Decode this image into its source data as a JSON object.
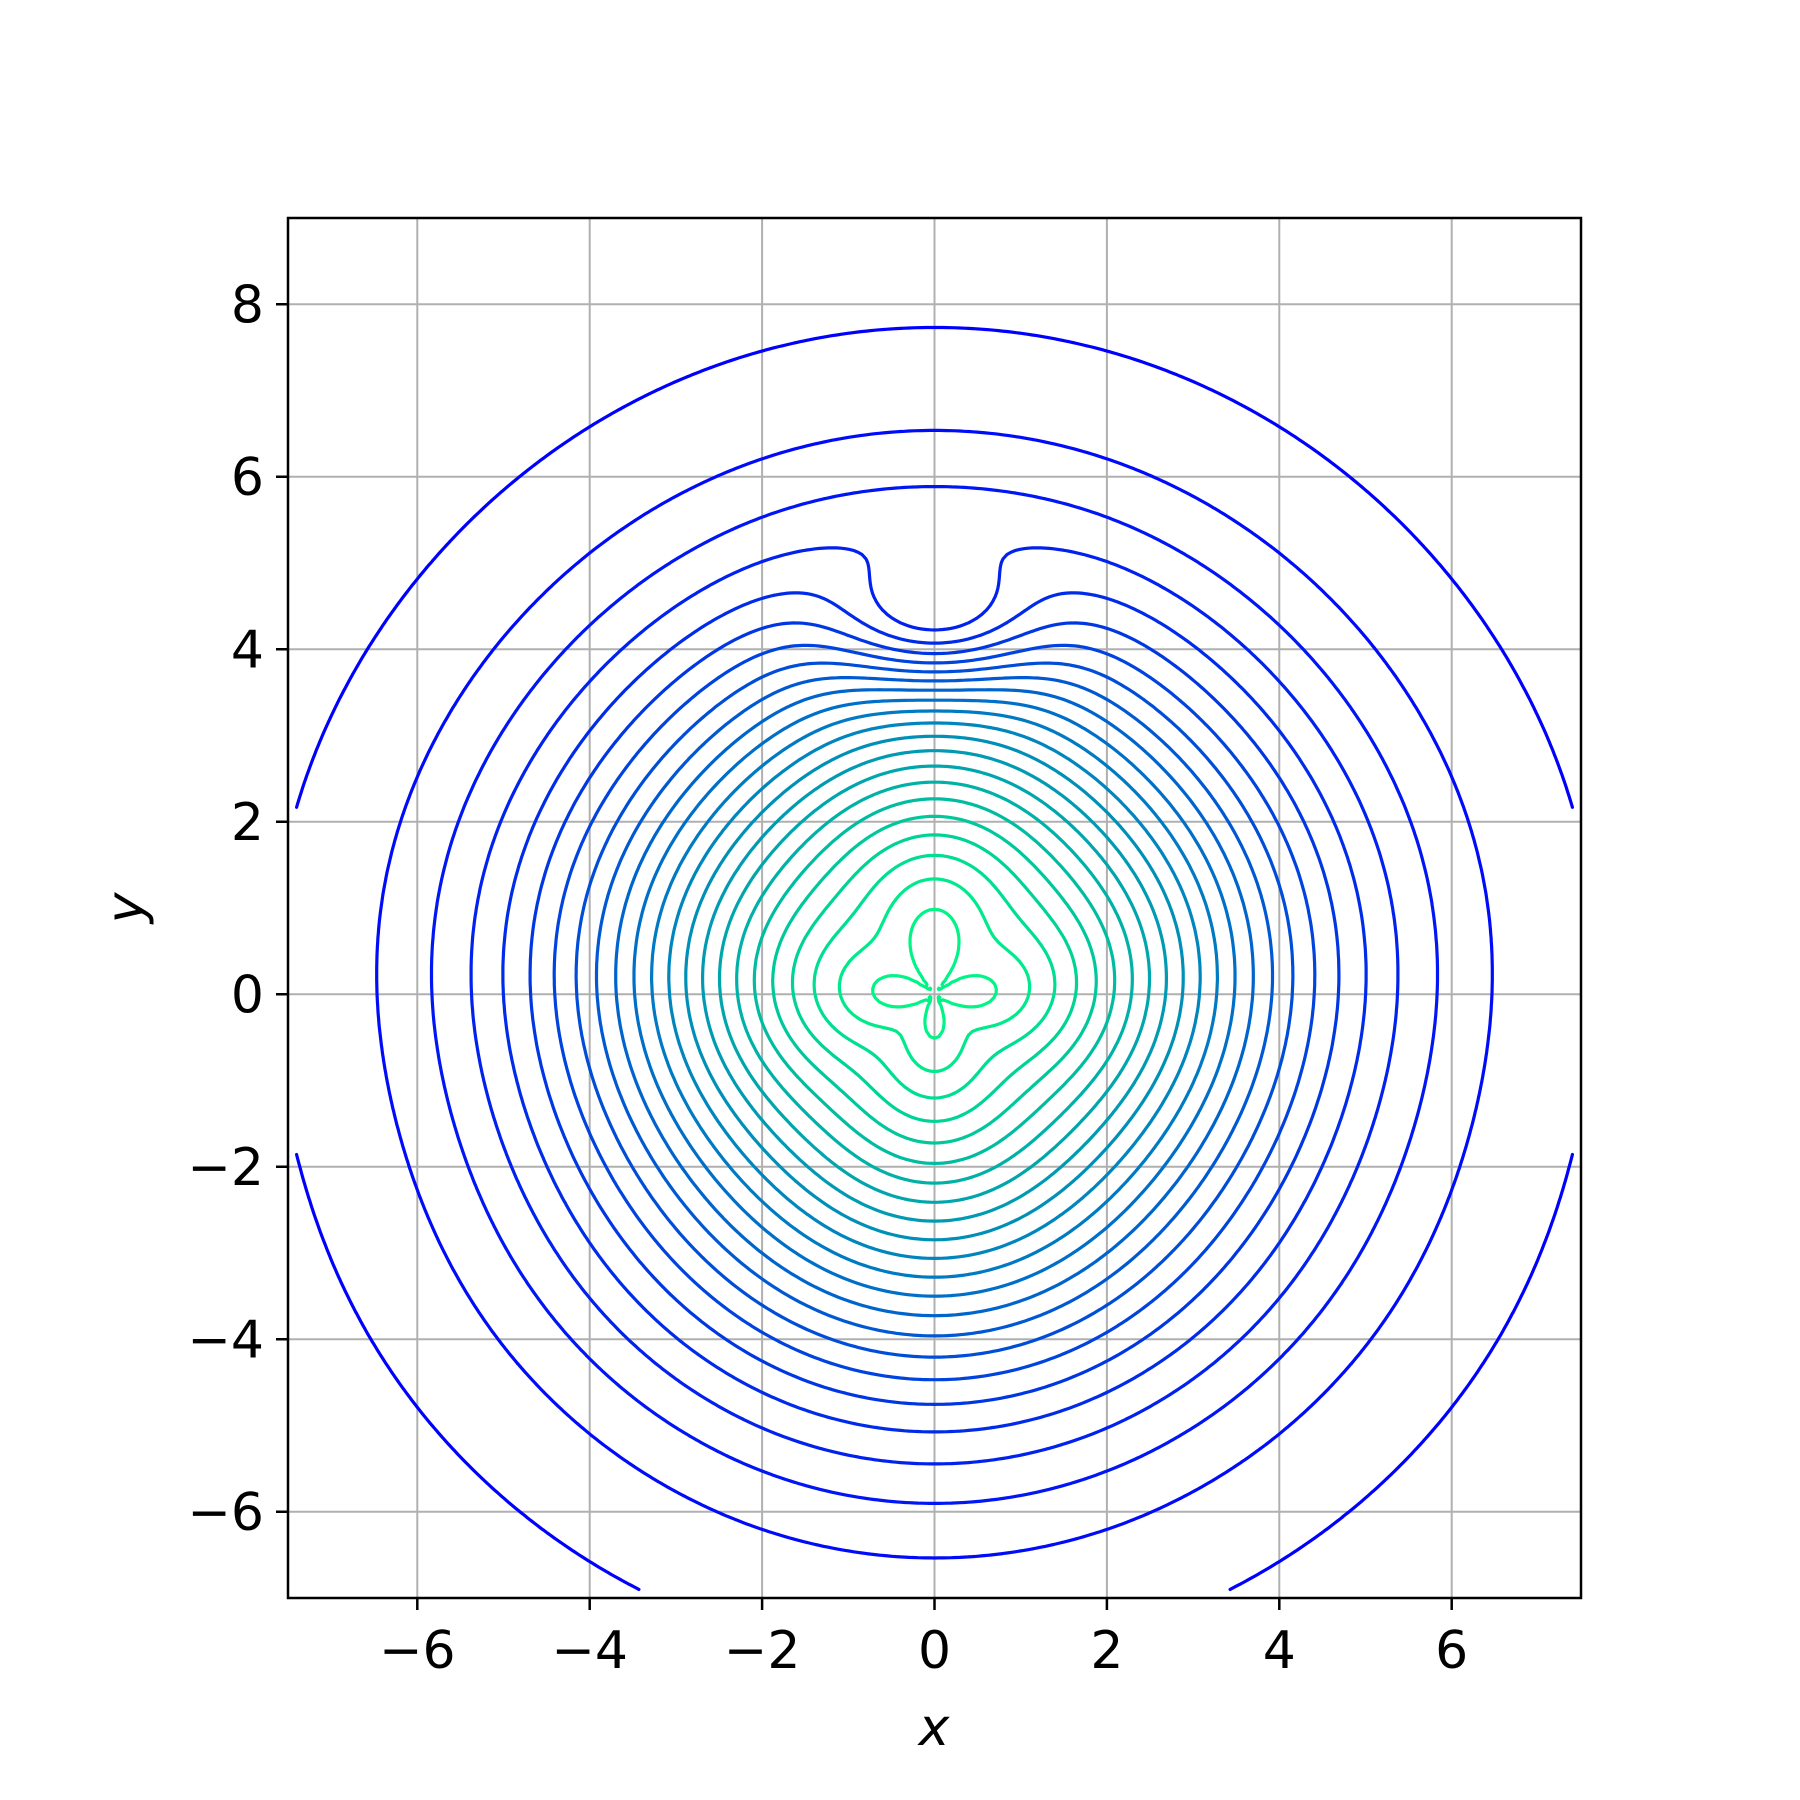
{
  "chart_data": {
    "type": "contour",
    "title": "",
    "xlabel": "x",
    "ylabel": "y",
    "xlim": [
      -7.5,
      7.5
    ],
    "ylim": [
      -7.0,
      9.0
    ],
    "xticks": [
      -6,
      -4,
      -2,
      0,
      2,
      4,
      6
    ],
    "yticks": [
      -6,
      -4,
      -2,
      0,
      2,
      4,
      6,
      8
    ],
    "xtick_labels": [
      "−6",
      "−4",
      "−2",
      "0",
      "2",
      "4",
      "6"
    ],
    "ytick_labels": [
      "−6",
      "−4",
      "−2",
      "0",
      "2",
      "4",
      "6",
      "8"
    ],
    "grid": true,
    "colormap": "winter",
    "color_low": "#0000ff",
    "color_high": "#00ff80",
    "frame_color": "#000000",
    "grid_color": "#b0b0b0",
    "contour_levels": 24,
    "features": {
      "outer_contour_extent": {
        "x": [
          -6.0,
          6.0
        ],
        "y": [
          -5.9,
          7.35
        ]
      },
      "peak_center": [
        0,
        0.1
      ],
      "secondary_basin_center": [
        0,
        4.3
      ],
      "local_extrema_pair": [
        [
          -1.5,
          4.7
        ],
        [
          1.5,
          4.7
        ]
      ],
      "steep_gradient_band_y": 3.0
    }
  }
}
